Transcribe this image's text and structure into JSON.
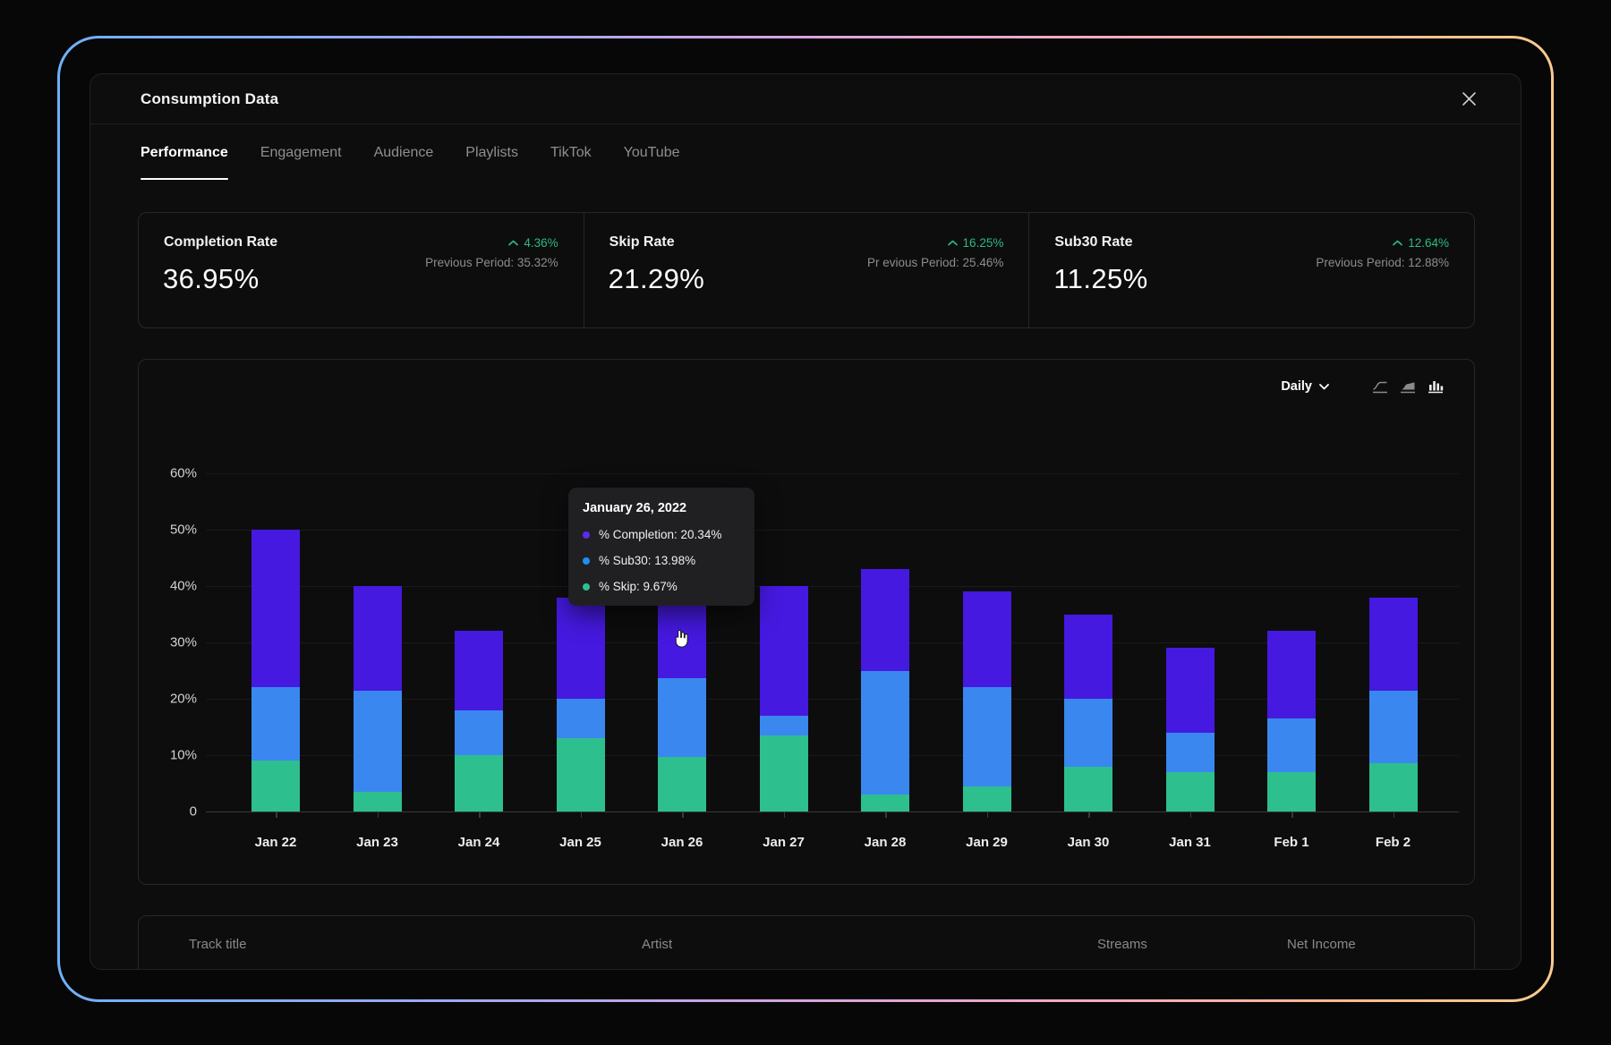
{
  "window": {
    "title": "Consumption Data"
  },
  "tabs": [
    {
      "label": "Performance",
      "active": true
    },
    {
      "label": "Engagement",
      "active": false
    },
    {
      "label": "Audience",
      "active": false
    },
    {
      "label": "Playlists",
      "active": false
    },
    {
      "label": "TikTok",
      "active": false
    },
    {
      "label": "YouTube",
      "active": false
    }
  ],
  "stats": [
    {
      "label": "Completion Rate",
      "value": "36.95%",
      "delta": "4.36%",
      "previous": "Previous Period: 35.32%"
    },
    {
      "label": "Skip Rate",
      "value": "21.29%",
      "delta": "16.25%",
      "previous": "Pr evious Period: 25.46%"
    },
    {
      "label": "Sub30 Rate",
      "value": "11.25%",
      "delta": "12.64%",
      "previous": "Previous Period: 12.88%"
    }
  ],
  "chart_controls": {
    "range_label": "Daily",
    "icons": [
      "line-chart",
      "area-chart",
      "bar-chart"
    ],
    "active_icon": "bar-chart"
  },
  "chart_data": {
    "type": "bar",
    "stacked": true,
    "title": "",
    "xlabel": "",
    "ylabel": "",
    "ylim": [
      0,
      60
    ],
    "yticks": [
      "60%",
      "50%",
      "40%",
      "30%",
      "20%",
      "10%",
      "0"
    ],
    "grid": true,
    "legend": "none",
    "categories": [
      "Jan 22",
      "Jan 23",
      "Jan 24",
      "Jan 25",
      "Jan 26",
      "Jan 27",
      "Jan 28",
      "Jan 29",
      "Jan 30",
      "Jan 31",
      "Feb 1",
      "Feb 2"
    ],
    "series": [
      {
        "name": "% Skip",
        "color": "#2dbf8d",
        "values": [
          9,
          3.5,
          10,
          13,
          9.67,
          13.5,
          3,
          4.5,
          8,
          7,
          7,
          8.5
        ]
      },
      {
        "name": "% Sub30",
        "color": "#3a87f0",
        "values": [
          13,
          18,
          8,
          7,
          13.98,
          3.5,
          22,
          17.5,
          12,
          7,
          9.5,
          13
        ]
      },
      {
        "name": "% Completion",
        "color": "#4519e0",
        "values": [
          28,
          18.5,
          14,
          18,
          20.34,
          23,
          18,
          17,
          15,
          15,
          15.5,
          16.5
        ]
      }
    ]
  },
  "tooltip": {
    "title": "January 26, 2022",
    "items": [
      {
        "label": "% Completion: 20.34%",
        "color": "#5a2cf0"
      },
      {
        "label": "% Sub30: 13.98%",
        "color": "#1e8ff5"
      },
      {
        "label": "% Skip: 9.67%",
        "color": "#2dbf8d"
      }
    ]
  },
  "table": {
    "columns": [
      "Track title",
      "Artist",
      "Streams",
      "Net Income"
    ]
  },
  "colors": {
    "accent_green": "#2abb7f",
    "bar_completion": "#4519e0",
    "bar_sub30": "#3a87f0",
    "bar_skip": "#2dbf8d"
  }
}
